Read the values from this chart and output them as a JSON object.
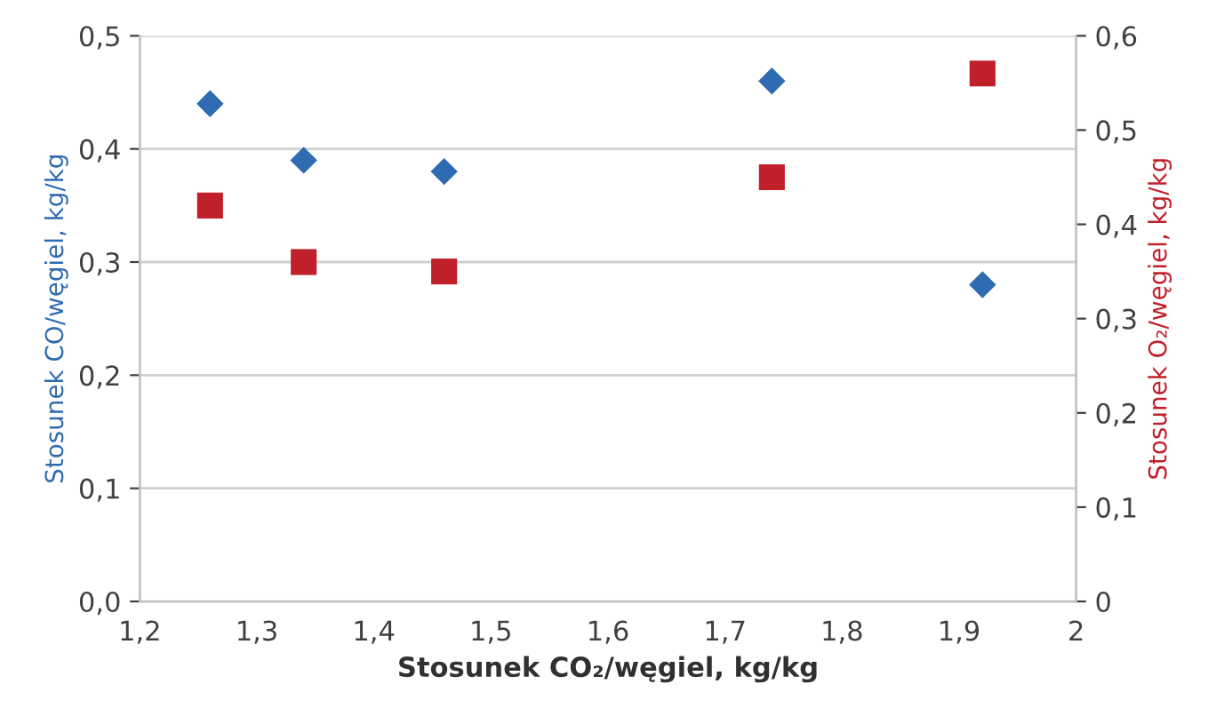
{
  "chart_data": {
    "type": "scatter",
    "xlabel": "Stosunek CO₂/węgiel, kg/kg",
    "ylabel": "Stosunek CO/węgiel, kg/kg",
    "y2label": "Stosunek O₂/węgiel, kg/kg",
    "x": [
      1.26,
      1.34,
      1.46,
      1.74,
      1.92
    ],
    "series": [
      {
        "color": "#2e6bb0",
        "marker": "diamond",
        "values": [
          0.44,
          0.39,
          0.38,
          0.46,
          0.28
        ]
      },
      {
        "color": "#c0202a",
        "marker": "square",
        "axis": "y2",
        "values": [
          0.42,
          0.36,
          0.35,
          0.45,
          0.56
        ]
      }
    ],
    "xlim": [
      1.2,
      2
    ],
    "xticks": [
      {
        "value": 1.2,
        "label": "1,2"
      },
      {
        "value": 1.3,
        "label": "1,3"
      },
      {
        "value": 1.4,
        "label": "1,4"
      },
      {
        "value": 1.5,
        "label": "1,5"
      },
      {
        "value": 1.6,
        "label": "1,6"
      },
      {
        "value": 1.7,
        "label": "1,7"
      },
      {
        "value": 1.8,
        "label": "1,8"
      },
      {
        "value": 1.9,
        "label": "1,9"
      },
      {
        "value": 2,
        "label": "2"
      }
    ],
    "ylim": [
      0,
      0.5
    ],
    "yticks": [
      {
        "value": 0,
        "label": "0,0"
      },
      {
        "value": 0.1,
        "label": "0,1"
      },
      {
        "value": 0.2,
        "label": "0,2"
      },
      {
        "value": 0.3,
        "label": "0,3"
      },
      {
        "value": 0.4,
        "label": "0,4"
      },
      {
        "value": 0.5,
        "label": "0,5"
      }
    ],
    "y2lim": [
      0,
      0.6
    ],
    "y2ticks": [
      {
        "value": 0,
        "label": "0"
      },
      {
        "value": 0.1,
        "label": "0,1"
      },
      {
        "value": 0.2,
        "label": "0,2"
      },
      {
        "value": 0.3,
        "label": "0,3"
      },
      {
        "value": 0.4,
        "label": "0,4"
      },
      {
        "value": 0.5,
        "label": "0,5"
      },
      {
        "value": 0.6,
        "label": "0,6"
      }
    ],
    "grid": "y",
    "legend": false
  }
}
